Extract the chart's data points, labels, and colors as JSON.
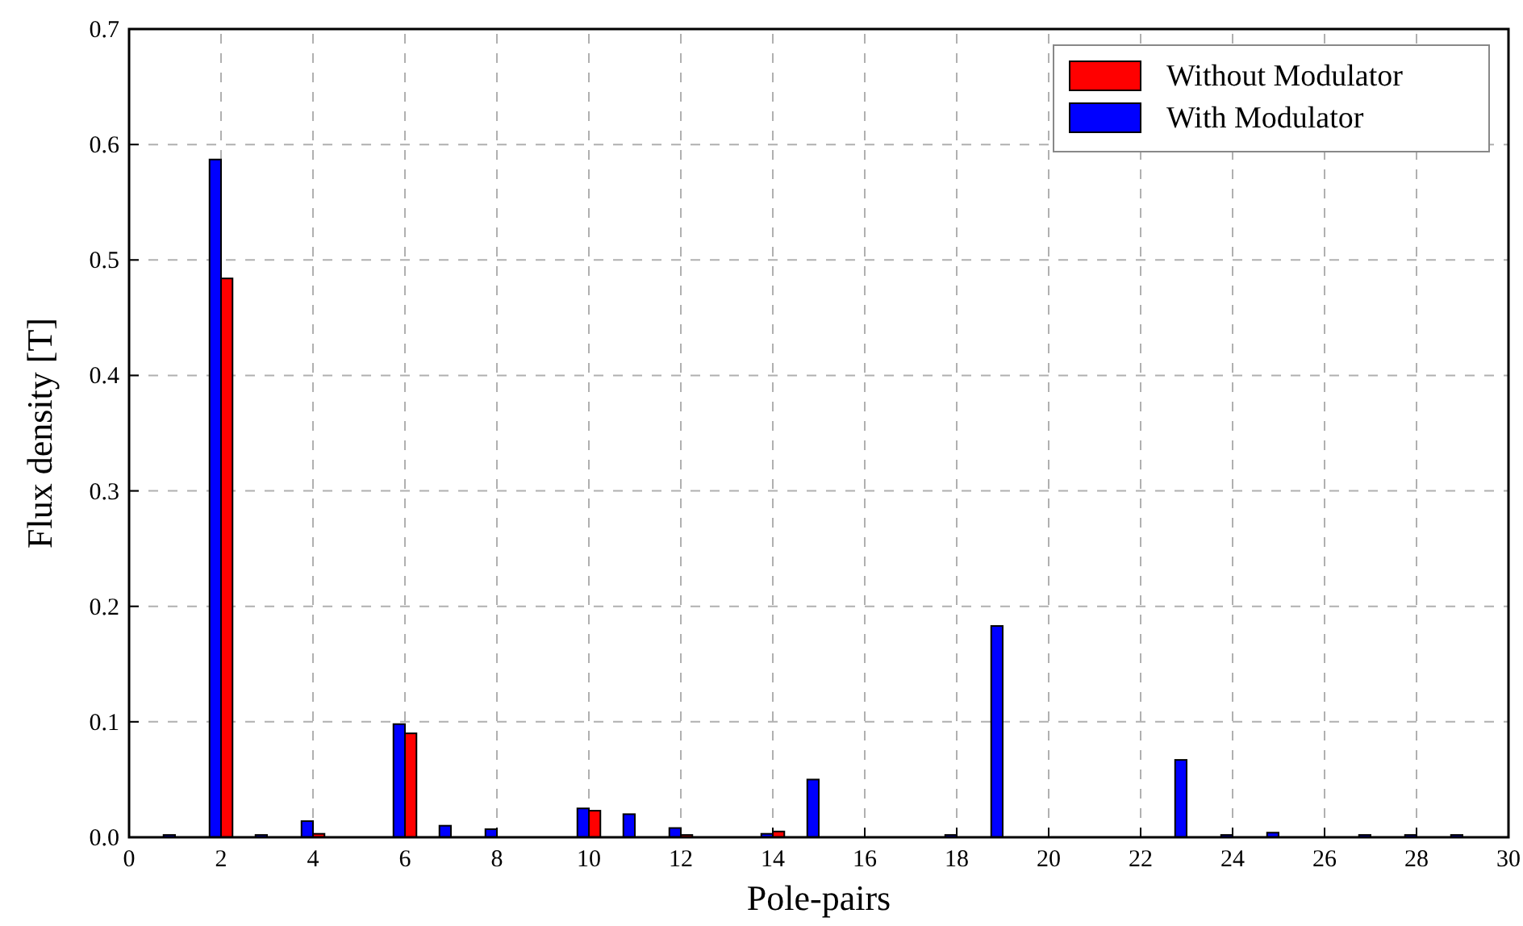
{
  "chart_data": {
    "type": "bar",
    "xlabel": "Pole-pairs",
    "ylabel": "Flux density [T]",
    "x": [
      1,
      2,
      3,
      4,
      5,
      6,
      7,
      8,
      9,
      10,
      11,
      12,
      13,
      14,
      15,
      16,
      17,
      18,
      19,
      20,
      21,
      22,
      23,
      24,
      25,
      26,
      27,
      28,
      29
    ],
    "series": [
      {
        "name": "Without Modulator",
        "color": "#ff0000",
        "values": [
          0,
          0.484,
          0,
          0.003,
          0,
          0.09,
          0,
          0,
          0,
          0.023,
          0,
          0.002,
          0,
          0.005,
          0,
          0,
          0,
          0,
          0,
          0,
          0,
          0,
          0,
          0,
          0,
          0,
          0,
          0,
          0
        ]
      },
      {
        "name": "With Modulator",
        "color": "#0000ff",
        "values": [
          0.002,
          0.587,
          0.002,
          0.014,
          0,
          0.098,
          0.01,
          0.007,
          0,
          0.025,
          0.02,
          0.008,
          0,
          0.003,
          0.05,
          0,
          0,
          0.002,
          0.183,
          0,
          0,
          0,
          0.067,
          0.002,
          0.004,
          0,
          0.002,
          0.002,
          0.002
        ]
      }
    ],
    "xlim": [
      0,
      30
    ],
    "xticks": [
      0,
      2,
      4,
      6,
      8,
      10,
      12,
      14,
      16,
      18,
      20,
      22,
      24,
      26,
      28,
      30
    ],
    "ylim": [
      0,
      0.7
    ],
    "yticks": [
      {
        "value": 0,
        "label": "0.0"
      },
      0.1,
      0.2,
      0.3,
      0.4,
      0.5,
      0.6,
      0.7
    ],
    "grid": true,
    "legend": "top right"
  }
}
